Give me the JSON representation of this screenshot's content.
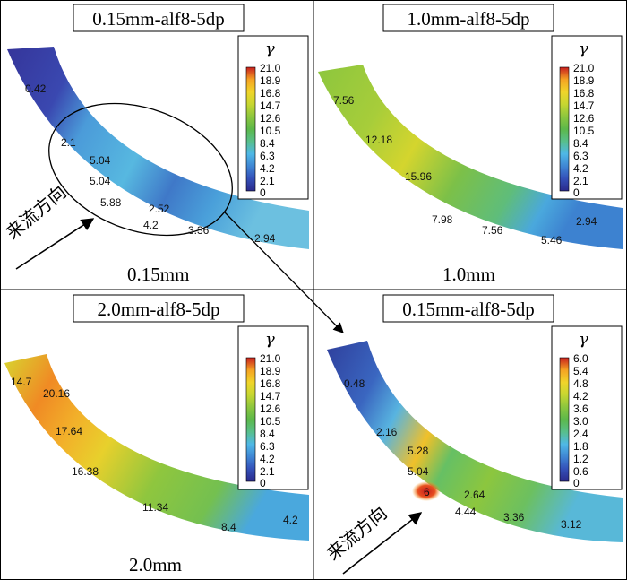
{
  "panels": [
    {
      "title": "0.15mm-alf8-5dp",
      "caption": "0.15mm",
      "legend_symbol": "γ",
      "legend_ticks": [
        "21.0",
        "18.9",
        "16.8",
        "14.7",
        "12.6",
        "10.5",
        "8.4",
        "6.3",
        "4.2",
        "2.1",
        "0"
      ],
      "flow_label": "来流方向",
      "values": [
        "0.42",
        "2.1",
        "5.04",
        "5.04",
        "5.88",
        "2.52",
        "4.2",
        "3.36",
        "2.94"
      ]
    },
    {
      "title": "1.0mm-alf8-5dp",
      "caption": "1.0mm",
      "legend_symbol": "γ",
      "legend_ticks": [
        "21.0",
        "18.9",
        "16.8",
        "14.7",
        "12.6",
        "10.5",
        "8.4",
        "6.3",
        "4.2",
        "2.1",
        "0"
      ],
      "values": [
        "7.56",
        "12.18",
        "15.96",
        "7.98",
        "7.56",
        "5.46",
        "2.94"
      ]
    },
    {
      "title": "2.0mm-alf8-5dp",
      "caption": "2.0mm",
      "legend_symbol": "γ",
      "legend_ticks": [
        "21.0",
        "18.9",
        "16.8",
        "14.7",
        "12.6",
        "10.5",
        "8.4",
        "6.3",
        "4.2",
        "2.1",
        "0"
      ],
      "values": [
        "14.7",
        "20.16",
        "17.64",
        "16.38",
        "11.34",
        "8.4",
        "4.2"
      ]
    },
    {
      "title": "0.15mm-alf8-5dp",
      "legend_symbol": "γ",
      "legend_ticks": [
        "6.0",
        "5.4",
        "4.8",
        "4.2",
        "3.6",
        "3.0",
        "2.4",
        "1.8",
        "1.2",
        "0.6",
        "0"
      ],
      "flow_label": "来流方向",
      "values": [
        "0.48",
        "2.16",
        "5.28",
        "5.04",
        "6",
        "2.64",
        "4.44",
        "3.36",
        "3.12"
      ]
    }
  ],
  "colors": {
    "scale": [
      "#2b2a8c",
      "#3450b8",
      "#3f86d4",
      "#4fb8e6",
      "#58bf8c",
      "#5cb84a",
      "#8cc63e",
      "#c6d631",
      "#f0d52a",
      "#f5a323",
      "#e8501f",
      "#c81e1e"
    ]
  }
}
